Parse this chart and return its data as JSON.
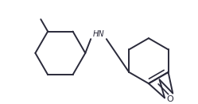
{
  "bg_color": "#ffffff",
  "line_color": "#2a2a3a",
  "line_width": 1.4,
  "font_color": "#2a2a3a",
  "nh_label": "HN",
  "o_label": "O",
  "figsize": [
    2.49,
    1.31
  ],
  "dpi": 100,
  "NH_fontsize": 7.0,
  "O_fontsize": 8.0
}
